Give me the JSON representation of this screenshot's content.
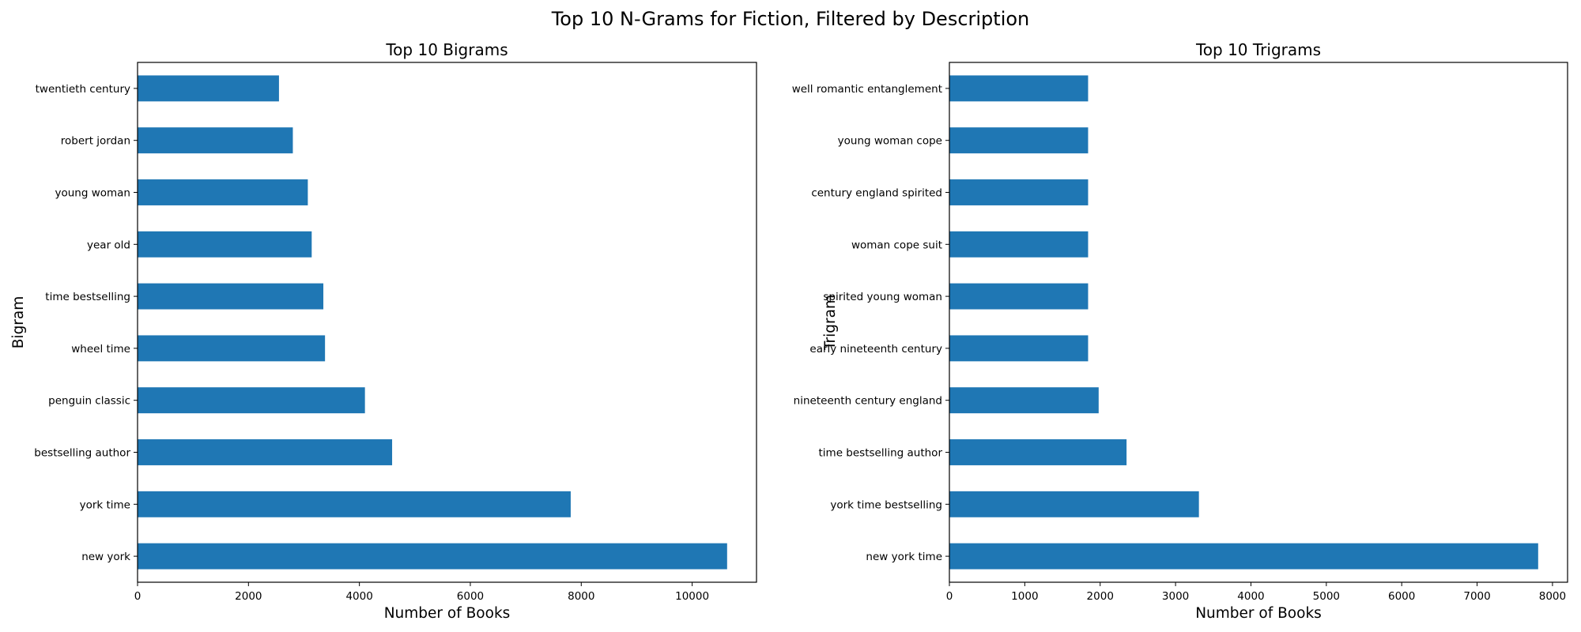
{
  "figure": {
    "title": "Top 10 N-Grams for Fiction, Filtered by Description"
  },
  "chart_data": [
    {
      "type": "bar",
      "orientation": "horizontal",
      "title": "Top 10 Bigrams",
      "xlabel": "Number of Books",
      "ylabel": "Bigram",
      "categories": [
        "new york",
        "york time",
        "bestselling author",
        "penguin classic",
        "wheel time",
        "time bestselling",
        "year old",
        "young woman",
        "robert jordan",
        "twentieth century"
      ],
      "values": [
        10630,
        7810,
        4590,
        4100,
        3380,
        3350,
        3140,
        3070,
        2800,
        2550
      ],
      "xlim": [
        0,
        11160
      ],
      "xticks": [
        0,
        2000,
        4000,
        6000,
        8000,
        10000
      ],
      "color": "#1f77b4"
    },
    {
      "type": "bar",
      "orientation": "horizontal",
      "title": "Top 10 Trigrams",
      "xlabel": "Number of Books",
      "ylabel": "Trigram",
      "categories": [
        "new york time",
        "york time bestselling",
        "time bestselling author",
        "nineteenth century england",
        "early nineteenth century",
        "spirited young woman",
        "woman cope suit",
        "century england spirited",
        "young woman cope",
        "well romantic entanglement"
      ],
      "values": [
        7810,
        3310,
        2350,
        1980,
        1840,
        1840,
        1840,
        1840,
        1840,
        1840
      ],
      "xlim": [
        0,
        8200
      ],
      "xticks": [
        0,
        1000,
        2000,
        3000,
        4000,
        5000,
        6000,
        7000,
        8000
      ],
      "color": "#1f77b4"
    }
  ]
}
